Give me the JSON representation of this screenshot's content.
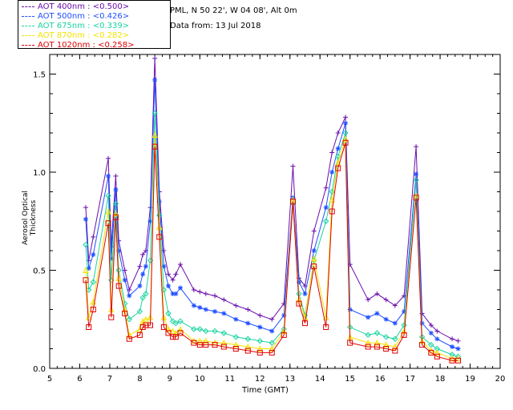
{
  "header": {
    "location": "PML, N 50 22', W 04 08', Alt 0m",
    "date": "Data from: 13 Jul 2018"
  },
  "legend": [
    {
      "label": "AOT  400nm : <0.500>",
      "color": "#6a0dad"
    },
    {
      "label": "AOT  500nm : <0.426>",
      "color": "#1f4fff"
    },
    {
      "label": "AOT  675nm : <0.339>",
      "color": "#19d3a0"
    },
    {
      "label": "AOT  870nm : <0.282>",
      "color": "#f2e200"
    },
    {
      "label": "AOT 1020nm : <0.258>",
      "color": "#e00000"
    }
  ],
  "chart_data": {
    "type": "line",
    "title": "",
    "xlabel": "Time (GMT)",
    "ylabel": "Aerosol Optical Thickness",
    "xlim": [
      5,
      20
    ],
    "ylim": [
      0,
      1.6
    ],
    "xticks": [
      "5",
      "6",
      "7",
      "8",
      "9",
      "10",
      "11",
      "12",
      "13",
      "14",
      "15",
      "16",
      "17",
      "18",
      "19",
      "20"
    ],
    "yticks": [
      "0.0",
      "0.5",
      "1.0",
      "1.5"
    ],
    "series": [
      {
        "name": "AOT 400nm",
        "color": "#6a0dad",
        "marker": "plus",
        "x": [
          6.2,
          6.3,
          6.45,
          6.95,
          7.05,
          7.2,
          7.3,
          7.5,
          7.65,
          8.0,
          8.1,
          8.2,
          8.35,
          8.5,
          8.65,
          8.8,
          8.95,
          9.1,
          9.2,
          9.35,
          9.8,
          10.0,
          10.2,
          10.5,
          10.8,
          11.2,
          11.6,
          12.0,
          12.4,
          12.8,
          13.1,
          13.3,
          13.5,
          13.8,
          14.2,
          14.4,
          14.6,
          14.85,
          15.0,
          15.6,
          15.9,
          16.2,
          16.5,
          16.8,
          17.2,
          17.4,
          17.7,
          17.9,
          18.4,
          18.6
        ],
        "y": [
          0.82,
          0.55,
          0.67,
          1.07,
          0.62,
          0.98,
          0.65,
          0.5,
          0.4,
          0.52,
          0.58,
          0.6,
          0.82,
          1.58,
          0.9,
          0.6,
          0.48,
          0.45,
          0.48,
          0.53,
          0.4,
          0.39,
          0.38,
          0.37,
          0.35,
          0.32,
          0.3,
          0.27,
          0.25,
          0.33,
          1.03,
          0.46,
          0.42,
          0.7,
          0.92,
          1.1,
          1.2,
          1.28,
          0.53,
          0.35,
          0.38,
          0.35,
          0.32,
          0.37,
          1.13,
          0.28,
          0.22,
          0.19,
          0.15,
          0.14
        ]
      },
      {
        "name": "AOT 500nm",
        "color": "#1f4fff",
        "marker": "asterisk",
        "x": [
          6.2,
          6.3,
          6.45,
          6.95,
          7.05,
          7.2,
          7.3,
          7.5,
          7.65,
          8.0,
          8.1,
          8.2,
          8.35,
          8.5,
          8.65,
          8.8,
          8.95,
          9.1,
          9.2,
          9.35,
          9.8,
          10.0,
          10.2,
          10.5,
          10.8,
          11.2,
          11.6,
          12.0,
          12.4,
          12.8,
          13.1,
          13.3,
          13.5,
          13.8,
          14.2,
          14.4,
          14.6,
          14.85,
          15.0,
          15.6,
          15.9,
          16.2,
          16.5,
          16.8,
          17.2,
          17.4,
          17.7,
          17.9,
          18.4,
          18.6
        ],
        "y": [
          0.76,
          0.51,
          0.58,
          0.98,
          0.56,
          0.91,
          0.6,
          0.45,
          0.37,
          0.42,
          0.48,
          0.52,
          0.75,
          1.47,
          0.85,
          0.52,
          0.42,
          0.38,
          0.38,
          0.41,
          0.32,
          0.31,
          0.3,
          0.29,
          0.28,
          0.25,
          0.23,
          0.21,
          0.19,
          0.27,
          0.87,
          0.44,
          0.38,
          0.6,
          0.82,
          1.0,
          1.12,
          1.25,
          0.3,
          0.26,
          0.28,
          0.25,
          0.23,
          0.29,
          0.99,
          0.23,
          0.18,
          0.15,
          0.11,
          0.1
        ]
      },
      {
        "name": "AOT 675nm",
        "color": "#19d3a0",
        "marker": "diamond",
        "x": [
          6.2,
          6.3,
          6.45,
          6.95,
          7.05,
          7.2,
          7.3,
          7.5,
          7.65,
          8.0,
          8.1,
          8.2,
          8.35,
          8.5,
          8.65,
          8.8,
          8.95,
          9.1,
          9.2,
          9.35,
          9.8,
          10.0,
          10.2,
          10.5,
          10.8,
          11.2,
          11.6,
          12.0,
          12.4,
          12.8,
          13.1,
          13.3,
          13.5,
          13.8,
          14.2,
          14.4,
          14.6,
          14.85,
          15.0,
          15.6,
          15.9,
          16.2,
          16.5,
          16.8,
          17.2,
          17.4,
          17.7,
          17.9,
          18.4,
          18.6
        ],
        "y": [
          0.63,
          0.4,
          0.44,
          0.88,
          0.45,
          0.84,
          0.5,
          0.33,
          0.25,
          0.29,
          0.36,
          0.38,
          0.55,
          1.3,
          0.78,
          0.4,
          0.28,
          0.24,
          0.23,
          0.24,
          0.2,
          0.2,
          0.19,
          0.19,
          0.18,
          0.16,
          0.15,
          0.14,
          0.13,
          0.2,
          0.84,
          0.38,
          0.27,
          0.55,
          0.75,
          0.9,
          1.08,
          1.2,
          0.21,
          0.17,
          0.18,
          0.16,
          0.15,
          0.22,
          0.96,
          0.16,
          0.12,
          0.1,
          0.07,
          0.06
        ]
      },
      {
        "name": "AOT 870nm",
        "color": "#f2e200",
        "marker": "triangle",
        "x": [
          6.2,
          6.3,
          6.45,
          6.95,
          7.05,
          7.2,
          7.3,
          7.5,
          7.65,
          8.0,
          8.1,
          8.2,
          8.35,
          8.5,
          8.65,
          8.8,
          8.95,
          9.1,
          9.2,
          9.35,
          9.8,
          10.0,
          10.2,
          10.5,
          10.8,
          11.2,
          11.6,
          12.0,
          12.4,
          12.8,
          13.1,
          13.3,
          13.5,
          13.8,
          14.2,
          14.4,
          14.6,
          14.85,
          15.0,
          15.6,
          15.9,
          16.2,
          16.5,
          16.8,
          17.2,
          17.4,
          17.7,
          17.9,
          18.4,
          18.6
        ],
        "y": [
          0.5,
          0.26,
          0.34,
          0.8,
          0.3,
          0.79,
          0.46,
          0.3,
          0.17,
          0.2,
          0.24,
          0.25,
          0.26,
          1.19,
          0.72,
          0.26,
          0.2,
          0.19,
          0.18,
          0.2,
          0.14,
          0.14,
          0.14,
          0.13,
          0.13,
          0.12,
          0.11,
          0.1,
          0.1,
          0.19,
          0.86,
          0.35,
          0.26,
          0.56,
          0.26,
          0.86,
          1.05,
          1.17,
          0.16,
          0.13,
          0.13,
          0.12,
          0.11,
          0.19,
          0.88,
          0.14,
          0.09,
          0.08,
          0.05,
          0.05
        ]
      },
      {
        "name": "AOT 1020nm",
        "color": "#e00000",
        "marker": "square",
        "x": [
          6.2,
          6.3,
          6.45,
          6.95,
          7.05,
          7.2,
          7.3,
          7.5,
          7.65,
          8.0,
          8.1,
          8.2,
          8.35,
          8.5,
          8.65,
          8.8,
          8.95,
          9.1,
          9.2,
          9.35,
          9.8,
          10.0,
          10.2,
          10.5,
          10.8,
          11.2,
          11.6,
          12.0,
          12.4,
          12.8,
          13.1,
          13.3,
          13.5,
          13.8,
          14.2,
          14.4,
          14.6,
          14.85,
          15.0,
          15.6,
          15.9,
          16.2,
          16.5,
          16.8,
          17.2,
          17.4,
          17.7,
          17.9,
          18.4,
          18.6
        ],
        "y": [
          0.45,
          0.21,
          0.3,
          0.74,
          0.26,
          0.77,
          0.42,
          0.28,
          0.15,
          0.17,
          0.21,
          0.22,
          0.22,
          1.13,
          0.67,
          0.21,
          0.18,
          0.16,
          0.16,
          0.18,
          0.13,
          0.12,
          0.12,
          0.12,
          0.11,
          0.1,
          0.09,
          0.08,
          0.08,
          0.17,
          0.85,
          0.33,
          0.23,
          0.52,
          0.21,
          0.8,
          1.02,
          1.15,
          0.13,
          0.11,
          0.11,
          0.1,
          0.09,
          0.17,
          0.87,
          0.12,
          0.08,
          0.06,
          0.04,
          0.04
        ]
      }
    ]
  }
}
